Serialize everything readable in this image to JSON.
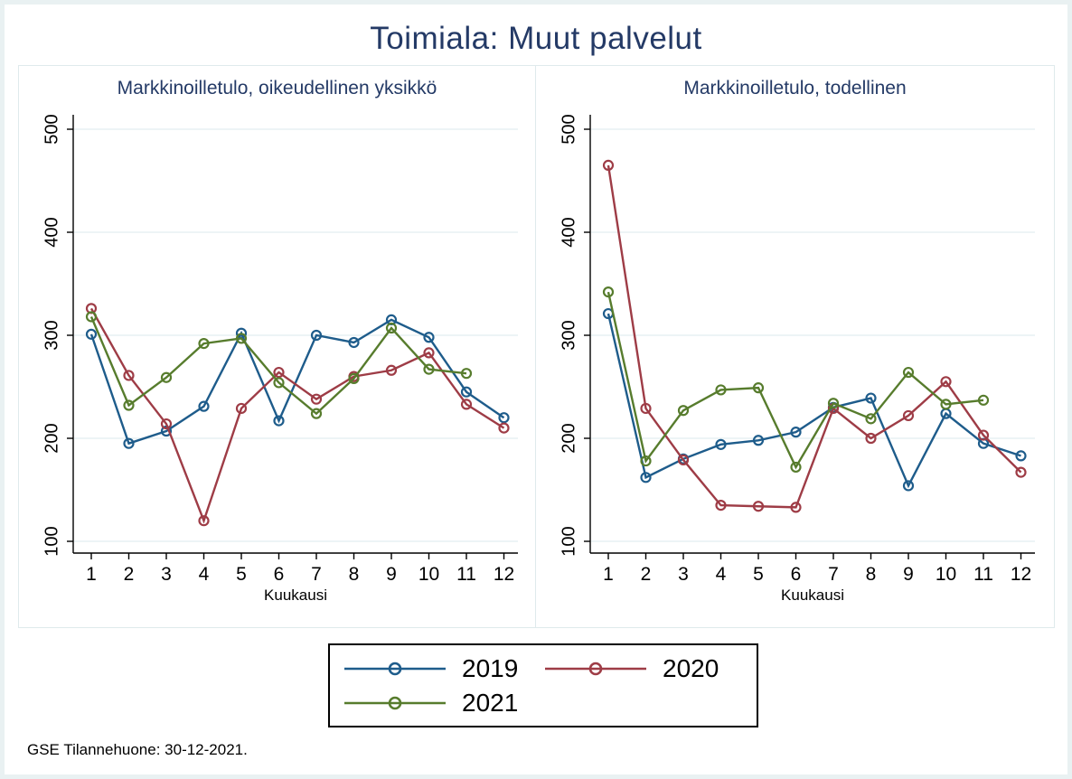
{
  "header": {
    "title": "Toimiala: Muut palvelut"
  },
  "footer": {
    "note": "GSE Tilannehuone: 30-12-2021."
  },
  "colors": {
    "title_navy": "#243a66",
    "grid": "#e7f1f3",
    "axis": "#000000",
    "page_border": "#e9f1f2",
    "panel_border": "#dfeaec",
    "series_2019": "#1e5c8b",
    "series_2020": "#9e3c46",
    "series_2021": "#577c2d"
  },
  "legend": {
    "entries": [
      {
        "label": "2019",
        "color": "#1e5c8b"
      },
      {
        "label": "2020",
        "color": "#9e3c46"
      },
      {
        "label": "2021",
        "color": "#577c2d"
      }
    ],
    "position": "bottom-center"
  },
  "chart_data": [
    {
      "type": "line",
      "title": "Markkinoilletulo, oikeudellinen yksikkö",
      "xlabel": "Kuukausi",
      "x": [
        1,
        2,
        3,
        4,
        5,
        6,
        7,
        8,
        9,
        10,
        11,
        12
      ],
      "x_tick_labels": [
        "1",
        "2",
        "3",
        "4",
        "5",
        "6",
        "7",
        "8",
        "9",
        "10",
        "11",
        "12"
      ],
      "ylim": [
        100,
        500
      ],
      "yticks": [
        100,
        200,
        300,
        400,
        500
      ],
      "grid": true,
      "marker": "circle-hollow",
      "series": [
        {
          "name": "2019",
          "color": "#1e5c8b",
          "values": [
            301,
            195,
            207,
            231,
            302,
            217,
            300,
            293,
            315,
            298,
            245,
            220
          ]
        },
        {
          "name": "2020",
          "color": "#9e3c46",
          "values": [
            326,
            261,
            214,
            120,
            229,
            264,
            238,
            260,
            266,
            283,
            233,
            210
          ]
        },
        {
          "name": "2021",
          "color": "#577c2d",
          "values": [
            318,
            232,
            259,
            292,
            297,
            254,
            224,
            258,
            307,
            267,
            263,
            null
          ]
        }
      ]
    },
    {
      "type": "line",
      "title": "Markkinoilletulo, todellinen",
      "xlabel": "Kuukausi",
      "x": [
        1,
        2,
        3,
        4,
        5,
        6,
        7,
        8,
        9,
        10,
        11,
        12
      ],
      "x_tick_labels": [
        "1",
        "2",
        "3",
        "4",
        "5",
        "6",
        "7",
        "8",
        "9",
        "10",
        "11",
        "12"
      ],
      "ylim": [
        100,
        500
      ],
      "yticks": [
        100,
        200,
        300,
        400,
        500
      ],
      "grid": true,
      "marker": "circle-hollow",
      "series": [
        {
          "name": "2019",
          "color": "#1e5c8b",
          "values": [
            321,
            162,
            180,
            194,
            198,
            206,
            230,
            239,
            154,
            224,
            195,
            183
          ]
        },
        {
          "name": "2020",
          "color": "#9e3c46",
          "values": [
            465,
            229,
            179,
            135,
            134,
            133,
            229,
            200,
            222,
            255,
            203,
            167
          ]
        },
        {
          "name": "2021",
          "color": "#577c2d",
          "values": [
            342,
            178,
            227,
            247,
            249,
            172,
            234,
            219,
            264,
            233,
            237,
            null
          ]
        }
      ]
    }
  ]
}
